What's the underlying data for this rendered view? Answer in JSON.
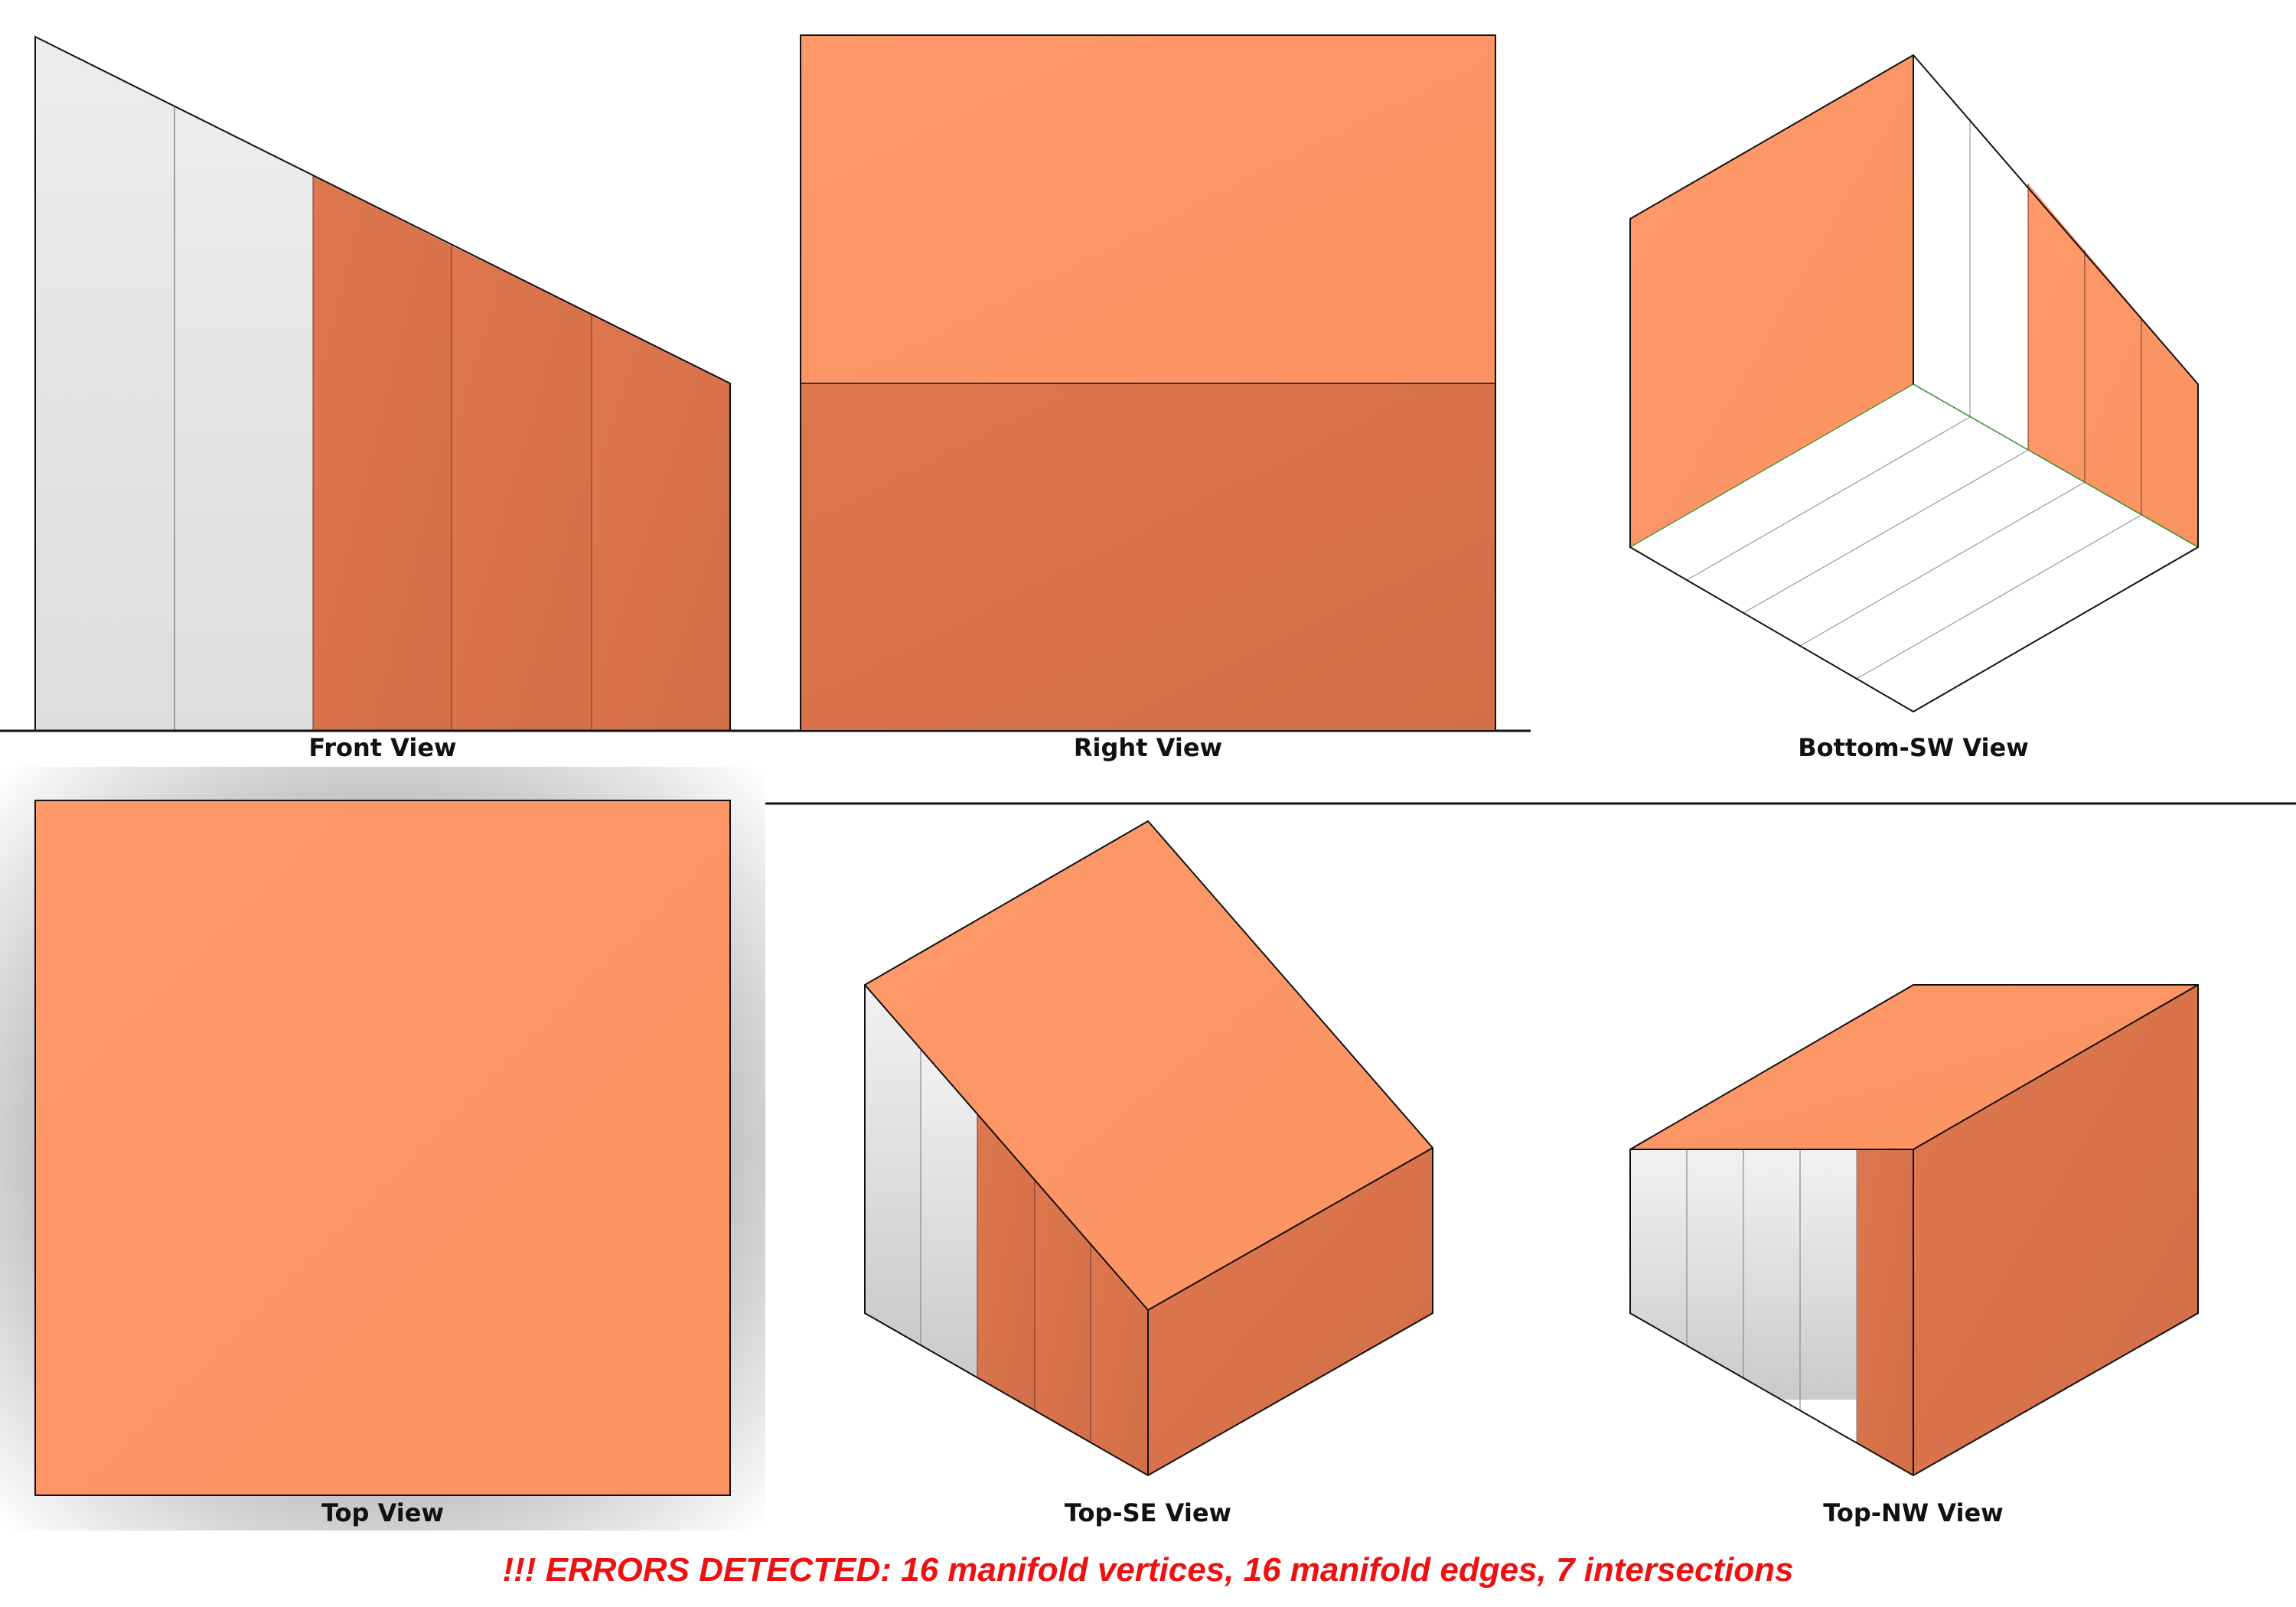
{
  "views": {
    "front": {
      "label": "Front View"
    },
    "right": {
      "label": "Right View"
    },
    "bottom_sw": {
      "label": "Bottom-SW View"
    },
    "top": {
      "label": "Top View"
    },
    "top_se": {
      "label": "Top-SE View"
    },
    "top_nw": {
      "label": "Top-NW View"
    }
  },
  "errors": {
    "message": "!!! ERRORS DETECTED: 16 manifold vertices, 16 manifold edges, 7 intersections"
  },
  "colors": {
    "orange_light": "#fe9766",
    "orange_dark": "#d9744c",
    "grey_light": "#e8e8e8",
    "grey_dark": "#cfcfcf",
    "white_face": "#ffffff",
    "edge": "#111111",
    "seam": "#7a7a7a",
    "seam_green": "#2f8a2f",
    "error_text": "#ee1111"
  }
}
